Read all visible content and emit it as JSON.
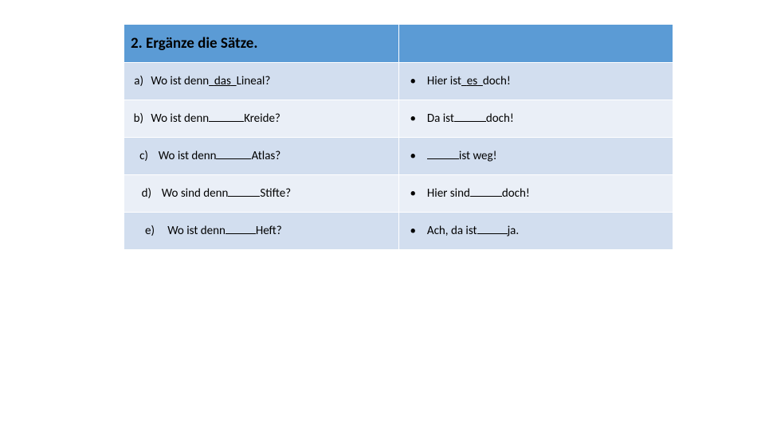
{
  "colors": {
    "header_bg": "#5b9bd5",
    "band1_bg": "#d2deef",
    "band2_bg": "#eaeff7",
    "border": "#ffffff",
    "text": "#000000"
  },
  "header": {
    "title": "2. Ergänze die Sätze.",
    "fontsize": 19,
    "fontweight": "bold"
  },
  "rows": [
    {
      "marker": "a)",
      "left_pre": "Wo ist denn",
      "left_ans": "das",
      "left_post": "Lineal?",
      "right_pre": "Hier ist",
      "right_ans": "es",
      "right_post": "doch!",
      "blank_style": "filled",
      "left_blank_w": 28,
      "right_blank_w": 18,
      "indent": 0
    },
    {
      "marker": "b)",
      "left_pre": "Wo ist denn",
      "left_post": "Kreide?",
      "right_pre": "Da ist",
      "right_post": "doch!",
      "blank_style": "empty",
      "left_blank_w": 44,
      "right_blank_w": 40,
      "indent": 0
    },
    {
      "marker": "c)",
      "left_pre": "Wo ist denn",
      "left_post": "Atlas?",
      "right_pre": "",
      "right_post": "ist weg!",
      "blank_style": "empty",
      "left_blank_w": 44,
      "right_blank_w": 40,
      "indent": 6
    },
    {
      "marker": "d)",
      "left_pre": "Wo sind denn",
      "left_post": "Stifte?",
      "right_pre": "Hier sind",
      "right_post": "doch!",
      "blank_style": "empty",
      "left_blank_w": 40,
      "right_blank_w": 40,
      "indent": 10
    },
    {
      "marker": "e)",
      "left_pre": "Wo ist denn",
      "left_post": "Heft?",
      "right_pre": "Ach, da ist",
      "right_post": "ja.",
      "blank_style": "empty",
      "left_blank_w": 38,
      "right_blank_w": 38,
      "indent": 18
    }
  ],
  "bullet_char": "•"
}
